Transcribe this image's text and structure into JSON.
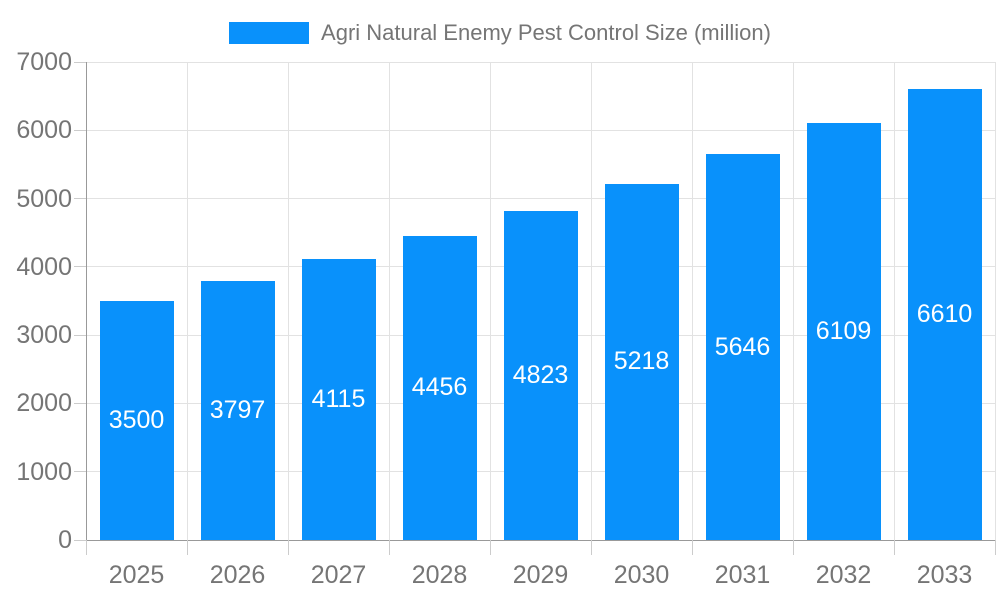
{
  "chart_data": {
    "type": "bar",
    "title": "Agri Natural Enemy Pest Control Size (million)",
    "legend_entries": [
      "Agri Natural Enemy Pest Control Size (million)"
    ],
    "legend_position": "top-center",
    "categories": [
      "2025",
      "2026",
      "2027",
      "2028",
      "2029",
      "2030",
      "2031",
      "2032",
      "2033"
    ],
    "values": [
      3500,
      3797,
      4115,
      4456,
      4823,
      5218,
      5646,
      6109,
      6610
    ],
    "xlabel": "",
    "ylabel": "",
    "ylim": [
      0,
      7000
    ],
    "yticks": [
      0,
      1000,
      2000,
      3000,
      4000,
      5000,
      6000,
      7000
    ],
    "grid": true,
    "value_labels": "inside-center"
  },
  "colors": {
    "bar": "#0991fb",
    "axis_label": "#757575",
    "value_label": "#ffffff",
    "grid_line": "#e2e2e2",
    "axis_line": "#999999",
    "tick": "#cccccc",
    "background": "#ffffff"
  }
}
